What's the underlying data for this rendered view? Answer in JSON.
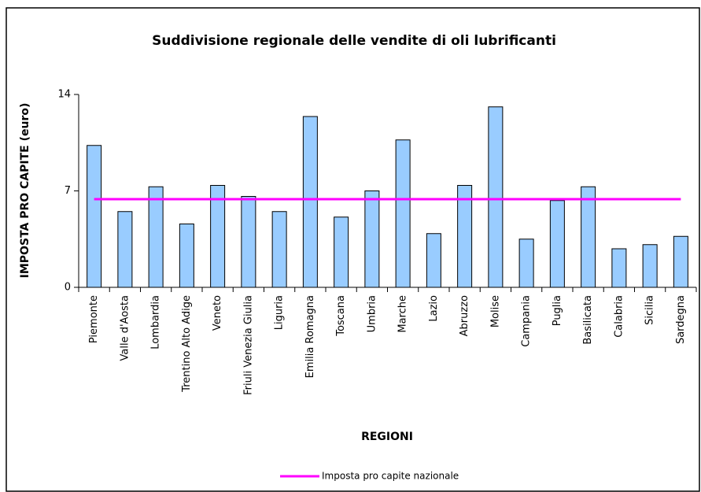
{
  "chart_data": {
    "type": "bar",
    "title": "Suddivisione regionale delle vendite di oli lubrificanti",
    "x_label": "REGIONI",
    "y_label": "IMPOSTA PRO CAPITE (euro)",
    "categories": [
      "Piemonte",
      "Valle d'Aosta",
      "Lombardia",
      "Trentino Alto Adige",
      "Veneto",
      "Friuli Venezia Giulia",
      "Liguria",
      "Emilia Romagna",
      "Toscana",
      "Umbria",
      "Marche",
      "Lazio",
      "Abruzzo",
      "Molise",
      "Campania",
      "Puglia",
      "Basilicata",
      "Calabria",
      "Sicilia",
      "Sardegna"
    ],
    "series": [
      {
        "type": "bar",
        "color": "#99ccff",
        "values": [
          10.3,
          5.5,
          7.3,
          4.6,
          7.4,
          6.6,
          5.5,
          12.4,
          5.1,
          7.0,
          10.7,
          3.9,
          7.4,
          13.1,
          3.5,
          6.3,
          7.3,
          2.8,
          3.1,
          3.7
        ]
      },
      {
        "type": "line",
        "name": "Imposta pro capite nazionale",
        "color": "#ff00ff",
        "values": [
          6.4,
          6.4,
          6.4,
          6.4,
          6.4,
          6.4,
          6.4,
          6.4,
          6.4,
          6.4,
          6.4,
          6.4,
          6.4,
          6.4,
          6.4,
          6.4,
          6.4,
          6.4,
          6.4,
          6.4
        ]
      }
    ],
    "ylim": [
      0,
      14
    ],
    "yticks": [
      0,
      7,
      14
    ],
    "grid": false,
    "legend": "bottom"
  }
}
